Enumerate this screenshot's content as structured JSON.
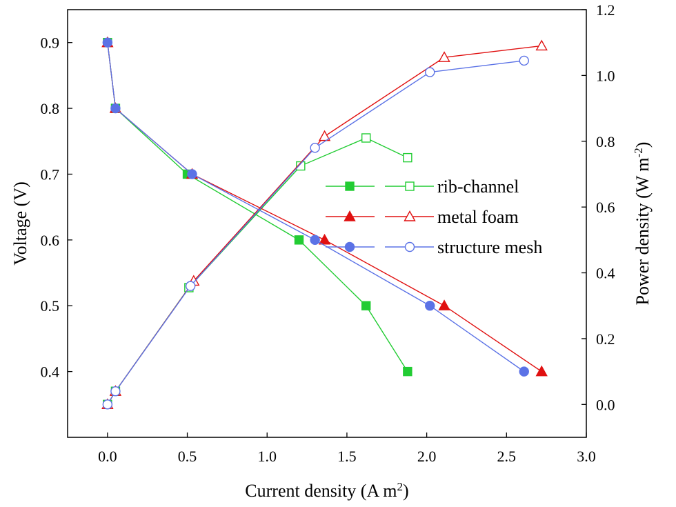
{
  "chart_data": {
    "type": "line",
    "x_axis": {
      "label_prefix": "Current density (A m",
      "label_sup": "2",
      "label_suffix": ")",
      "range": [
        -0.25,
        3.0
      ],
      "ticks": [
        "0.0",
        "0.5",
        "1.0",
        "1.5",
        "2.0",
        "2.5",
        "3.0"
      ]
    },
    "y_left": {
      "label": "Voltage (V)",
      "range": [
        0.3,
        0.95
      ],
      "ticks": [
        "0.4",
        "0.5",
        "0.6",
        "0.7",
        "0.8",
        "0.9"
      ]
    },
    "y_right": {
      "label_prefix": "Power density (W m",
      "label_sup": "-2",
      "label_suffix": ")",
      "range": [
        -0.1,
        1.2
      ],
      "ticks": [
        "0.0",
        "0.2",
        "0.4",
        "0.6",
        "0.8",
        "1.0",
        "1.2"
      ]
    },
    "grid": false,
    "legend_position": "center-right",
    "series": [
      {
        "name": "rib-channel",
        "color": "#22cc33",
        "marker": "square",
        "voltage": {
          "x": [
            0.0,
            0.05,
            0.5,
            1.2,
            1.62,
            1.88
          ],
          "y": [
            0.9,
            0.8,
            0.7,
            0.6,
            0.5,
            0.4
          ]
        },
        "power": {
          "x": [
            0.0,
            0.05,
            0.51,
            1.21,
            1.62,
            1.88
          ],
          "y": [
            0.0,
            0.04,
            0.355,
            0.725,
            0.81,
            0.75
          ]
        }
      },
      {
        "name": "metal foam",
        "color": "#e01010",
        "marker": "triangle",
        "voltage": {
          "x": [
            0.0,
            0.05,
            0.53,
            1.36,
            2.11,
            2.72
          ],
          "y": [
            0.9,
            0.8,
            0.7,
            0.6,
            0.5,
            0.4
          ]
        },
        "power": {
          "x": [
            0.0,
            0.05,
            0.54,
            1.36,
            2.11,
            2.72
          ],
          "y": [
            0.0,
            0.04,
            0.375,
            0.815,
            1.055,
            1.09
          ]
        }
      },
      {
        "name": "structure mesh",
        "color": "#5b72e6",
        "marker": "circle",
        "voltage": {
          "x": [
            0.0,
            0.05,
            0.53,
            1.3,
            2.02,
            2.61
          ],
          "y": [
            0.9,
            0.8,
            0.7,
            0.6,
            0.5,
            0.4
          ]
        },
        "power": {
          "x": [
            0.0,
            0.05,
            0.52,
            1.3,
            2.02,
            2.61
          ],
          "y": [
            0.0,
            0.04,
            0.36,
            0.78,
            1.01,
            1.045
          ]
        }
      }
    ]
  }
}
